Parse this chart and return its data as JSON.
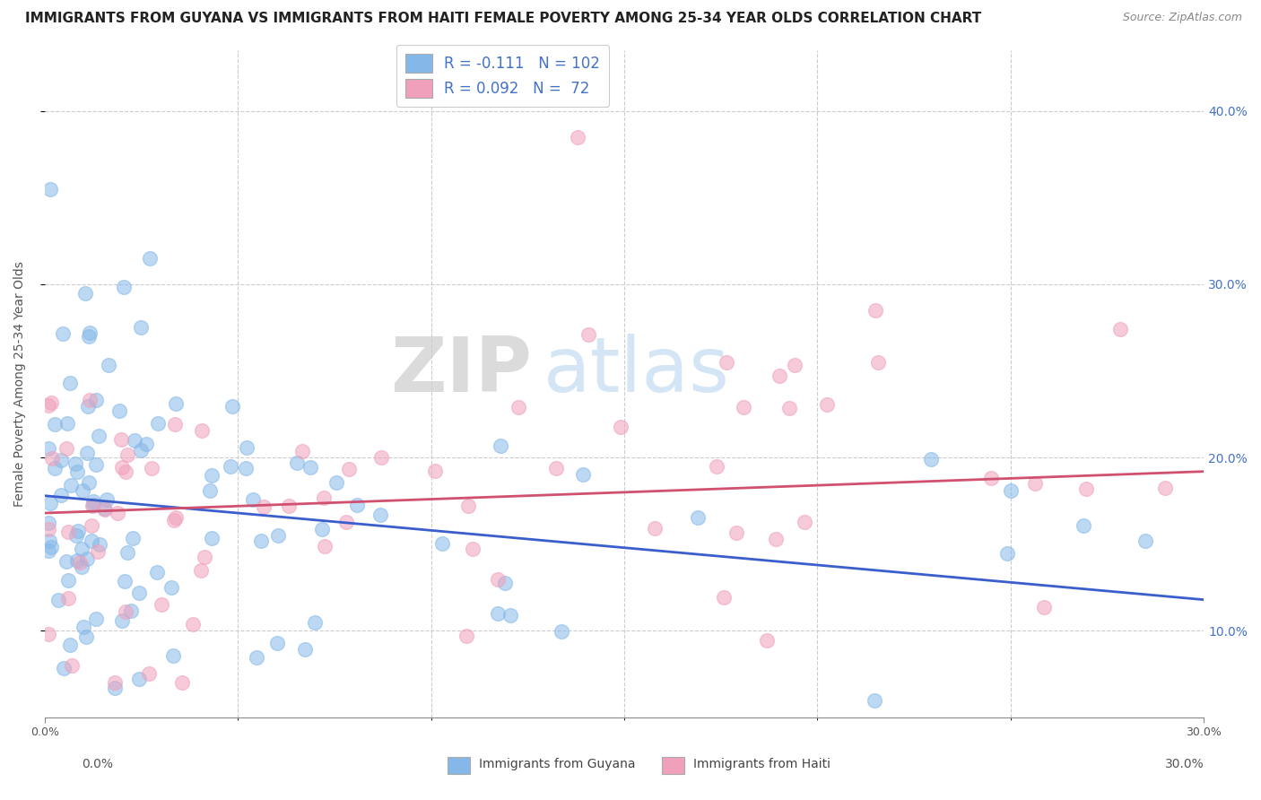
{
  "title": "IMMIGRANTS FROM GUYANA VS IMMIGRANTS FROM HAITI FEMALE POVERTY AMONG 25-34 YEAR OLDS CORRELATION CHART",
  "source": "Source: ZipAtlas.com",
  "ylabel": "Female Poverty Among 25-34 Year Olds",
  "y_ticks": [
    0.1,
    0.2,
    0.3,
    0.4
  ],
  "y_tick_labels": [
    "10.0%",
    "20.0%",
    "30.0%",
    "40.0%"
  ],
  "x_min": 0.0,
  "x_max": 0.3,
  "y_min": 0.05,
  "y_max": 0.435,
  "blue_color": "#85B8E8",
  "pink_color": "#F0A0BB",
  "blue_line_color": "#3A5FCD",
  "pink_line_color": "#D05070",
  "legend_blue_R": "-0.111",
  "legend_blue_N": "102",
  "legend_pink_R": "0.092",
  "legend_pink_N": "72",
  "legend_label_blue": "Immigrants from Guyana",
  "legend_label_pink": "Immigrants from Haiti",
  "watermark_zip": "ZIP",
  "watermark_atlas": "atlas",
  "title_fontsize": 11,
  "source_fontsize": 9,
  "axis_label_fontsize": 10,
  "tick_fontsize": 9,
  "blue_trend_y0": 0.178,
  "blue_trend_y1": 0.118,
  "pink_trend_y0": 0.168,
  "pink_trend_y1": 0.192
}
